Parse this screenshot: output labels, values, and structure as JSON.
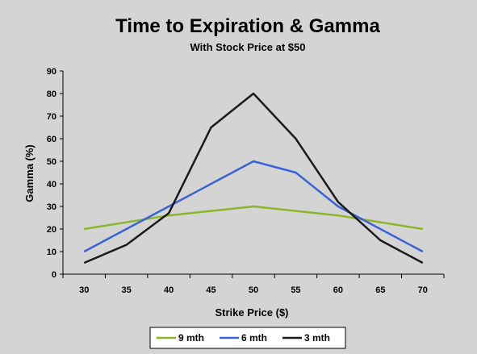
{
  "chart_data": {
    "type": "line",
    "title": "Time to Expiration & Gamma",
    "subtitle": "With Stock Price at $50",
    "xlabel": "Strike Price ($)",
    "ylabel": "Gamma (%)",
    "x": [
      30,
      35,
      40,
      45,
      50,
      55,
      60,
      65,
      70
    ],
    "ylim": [
      0,
      90
    ],
    "yticks": [
      0,
      10,
      20,
      30,
      40,
      50,
      60,
      70,
      80,
      90
    ],
    "grid": false,
    "legend_position": "bottom",
    "series": [
      {
        "name": "9 mth",
        "color": "#8db52a",
        "values": [
          20,
          23,
          26,
          28,
          30,
          28,
          26,
          23,
          20
        ]
      },
      {
        "name": "6 mth",
        "color": "#3b63d8",
        "values": [
          10,
          20,
          30,
          40,
          50,
          45,
          30,
          20,
          10
        ]
      },
      {
        "name": "3 mth",
        "color": "#1a1a1a",
        "values": [
          5,
          13,
          27,
          65,
          80,
          60,
          32,
          15,
          5
        ]
      }
    ]
  }
}
